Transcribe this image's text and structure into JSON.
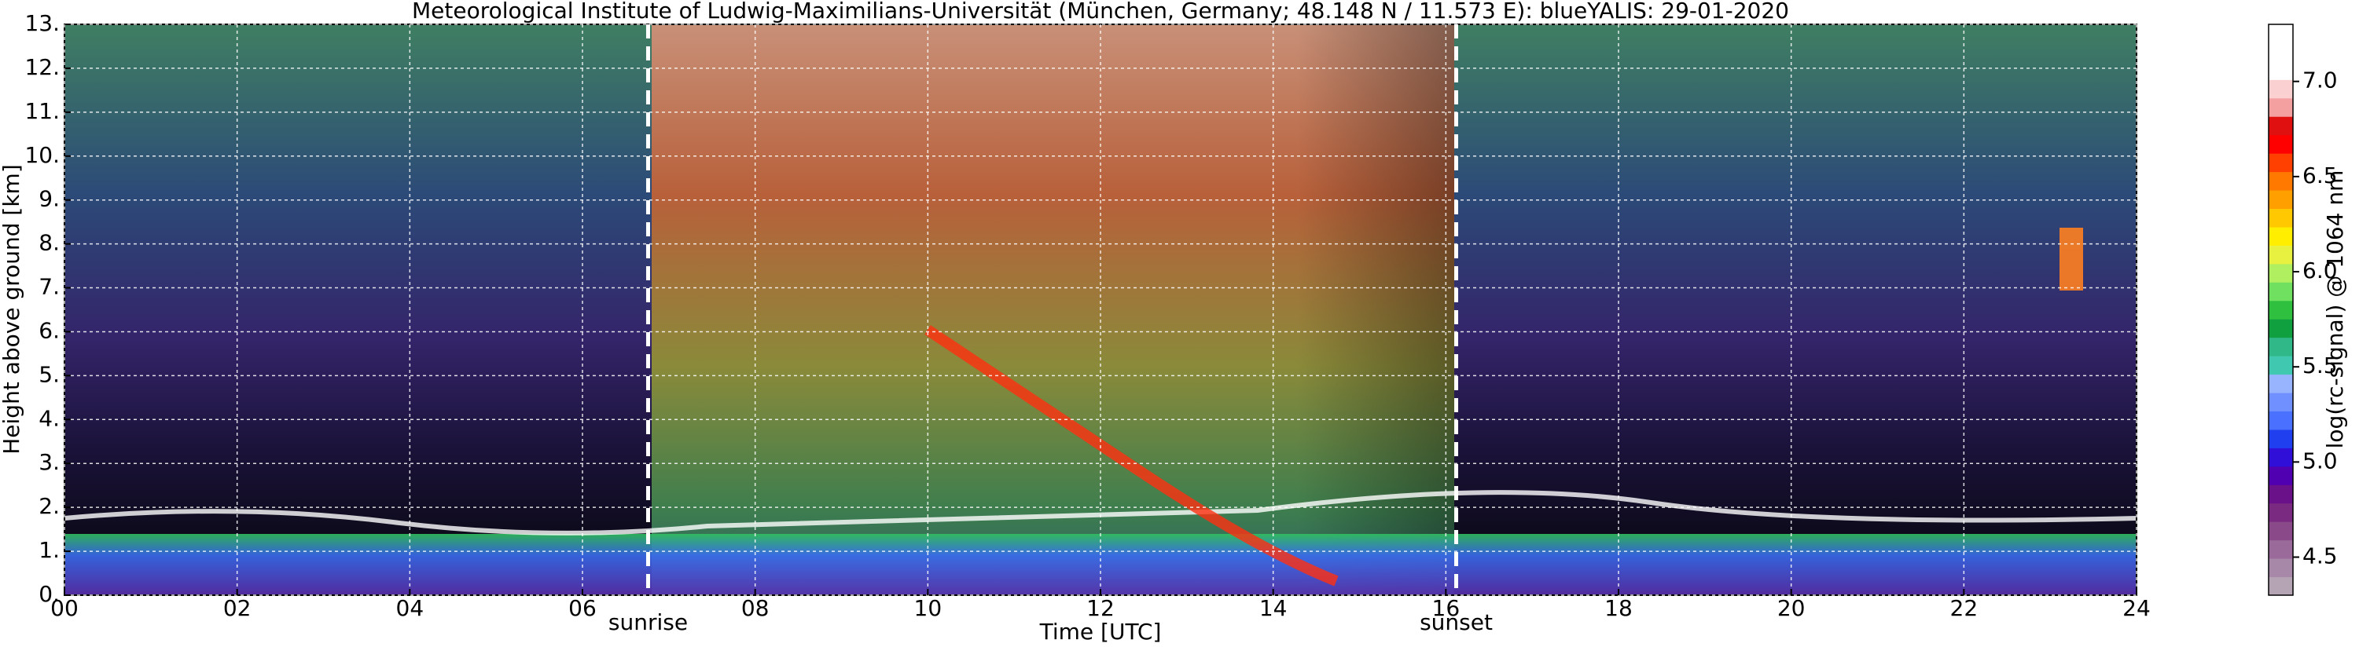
{
  "chart_data": {
    "type": "heatmap",
    "title": "Meteorological Institute of Ludwig-Maximilians-Universität (München, Germany; 48.148 N / 11.573 E):    blueYALIS: 29-01-2020",
    "x_label": "Time [UTC]",
    "y_label": "Height above ground [km]",
    "xlim": [
      0,
      24
    ],
    "xticks": [
      {
        "value": 0,
        "label": "00"
      },
      {
        "value": 2,
        "label": "02"
      },
      {
        "value": 4,
        "label": "04"
      },
      {
        "value": 6,
        "label": "06"
      },
      {
        "value": 8,
        "label": "08"
      },
      10,
      12,
      14,
      16,
      18,
      20,
      22,
      24
    ],
    "ylim": [
      0,
      13
    ],
    "yticks": [
      {
        "value": 0,
        "label": "0."
      },
      {
        "value": 1,
        "label": "1."
      },
      {
        "value": 2,
        "label": "2."
      },
      {
        "value": 3,
        "label": "3."
      },
      {
        "value": 4,
        "label": "4."
      },
      {
        "value": 5,
        "label": "5."
      },
      {
        "value": 6,
        "label": "6."
      },
      {
        "value": 7,
        "label": "7."
      },
      {
        "value": 8,
        "label": "8."
      },
      {
        "value": 9,
        "label": "9."
      },
      {
        "value": 10,
        "label": "10."
      },
      {
        "value": 11,
        "label": "11."
      },
      {
        "value": 12,
        "label": "12."
      },
      {
        "value": 13,
        "label": "13."
      }
    ],
    "grid": true,
    "vlines": [
      {
        "x": 6.76,
        "label": "sunrise"
      },
      {
        "x": 16.12,
        "label": "sunset"
      }
    ],
    "colorbar": {
      "label": "log(rc-signal) @ 1064 nm",
      "lim": [
        4.3,
        7.3
      ],
      "ticks": [
        4.5,
        {
          "value": 5,
          "label": "5.0"
        },
        5.5,
        {
          "value": 6,
          "label": "6.0"
        },
        6.5,
        {
          "value": 7,
          "label": "7.0"
        }
      ],
      "colors": [
        "#b4a4b4",
        "#a888a8",
        "#9a6a9a",
        "#8a4a8a",
        "#7a2a80",
        "#6a1088",
        "#5000b0",
        "#3010d8",
        "#2040f0",
        "#4a70ff",
        "#7090ff",
        "#98b4ff",
        "#40c8b0",
        "#30b888",
        "#10a040",
        "#30c040",
        "#70e060",
        "#b0f060",
        "#e8f040",
        "#ffee00",
        "#ffc800",
        "#ffa000",
        "#ff7800",
        "#ff4000",
        "#ff0000",
        "#e01010",
        "#f4a0a0",
        "#fad0d0",
        "#ffffff",
        "#ffffff",
        "#ffffff"
      ]
    }
  }
}
